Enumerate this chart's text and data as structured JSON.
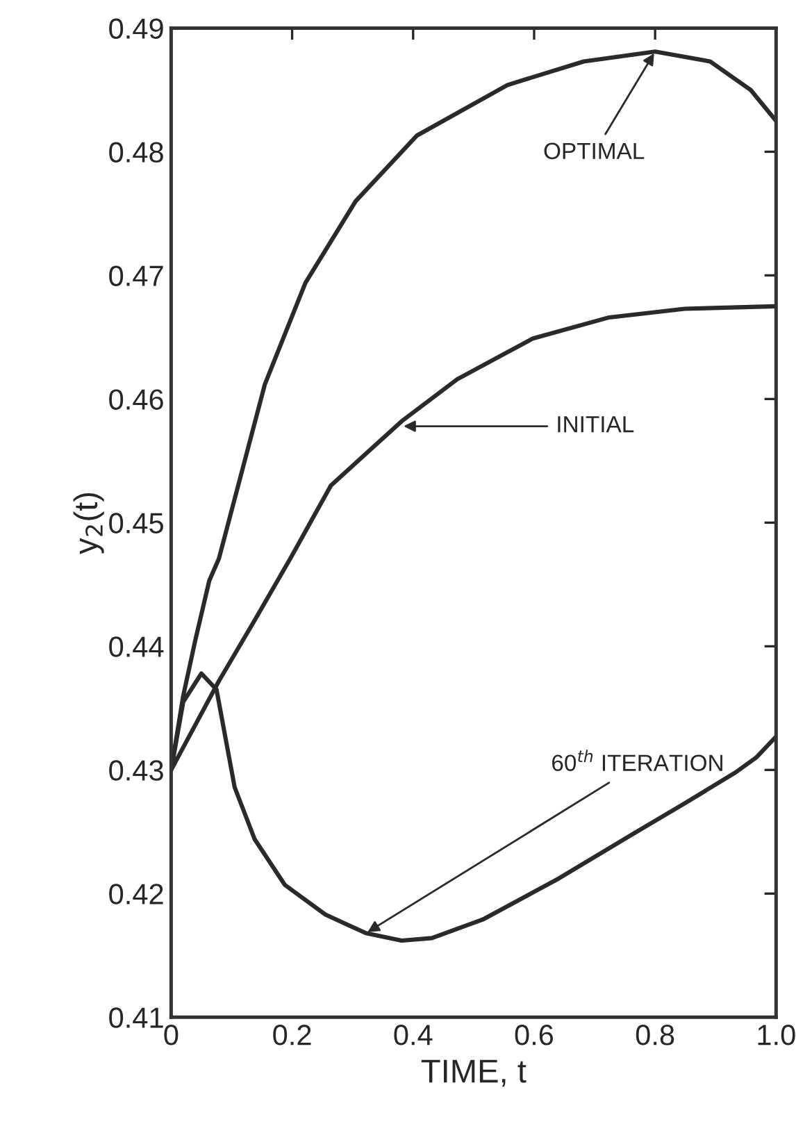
{
  "chart_data": {
    "type": "line",
    "xlabel": "TIME, t",
    "ylabel": "y$_{2}$(t)",
    "xlim": [
      0,
      1.0
    ],
    "xticks": [
      0,
      0.2,
      0.4,
      0.6,
      0.8,
      {
        "value": 1.0,
        "label": "1.0"
      }
    ],
    "ylim": [
      0.41,
      0.49
    ],
    "yticks": [
      0.41,
      0.42,
      0.43,
      0.44,
      0.45,
      0.46,
      0.47,
      0.48,
      0.49
    ],
    "grid": false,
    "legend": false,
    "marker": "none",
    "line_style": "solid",
    "series": [
      {
        "color": "#2a2a2a",
        "x": [
          0,
          0.02,
          0.04,
          0.063,
          0.079,
          0.155,
          0.222,
          0.305,
          0.406,
          0.556,
          0.682,
          0.8,
          0.891,
          0.958,
          1.0
        ],
        "values": [
          0.43,
          0.436,
          0.4405,
          0.4453,
          0.4471,
          0.4612,
          0.4694,
          0.476,
          0.4813,
          0.4854,
          0.4873,
          0.4881,
          0.4873,
          0.485,
          0.4825
        ]
      },
      {
        "color": "#2a2a2a",
        "x": [
          0,
          0.079,
          0.138,
          0.197,
          0.264,
          0.381,
          0.473,
          0.598,
          0.724,
          0.849,
          1.0
        ],
        "values": [
          0.43,
          0.4372,
          0.4421,
          0.4471,
          0.453,
          0.4582,
          0.4616,
          0.4649,
          0.4666,
          0.4673,
          0.4675
        ]
      },
      {
        "color": "#2a2a2a",
        "x": [
          0,
          0.02,
          0.05,
          0.075,
          0.105,
          0.138,
          0.188,
          0.255,
          0.322,
          0.381,
          0.431,
          0.515,
          0.64,
          0.766,
          0.849,
          0.933,
          0.967,
          1.0
        ],
        "values": [
          0.43,
          0.4355,
          0.4378,
          0.4365,
          0.4286,
          0.4244,
          0.4207,
          0.4183,
          0.4168,
          0.4162,
          0.4164,
          0.4179,
          0.4212,
          0.4249,
          0.4273,
          0.4298,
          0.431,
          0.4327
        ]
      }
    ],
    "annotations": [
      {
        "text": "OPTIMAL",
        "x": 0.8,
        "y": 0.4881
      },
      {
        "text": "INITIAL",
        "x": 0.381,
        "y": 0.4578
      },
      {
        "text": "60$^{th}$ ITERATION",
        "x": 0.322,
        "y": 0.4168
      }
    ]
  }
}
